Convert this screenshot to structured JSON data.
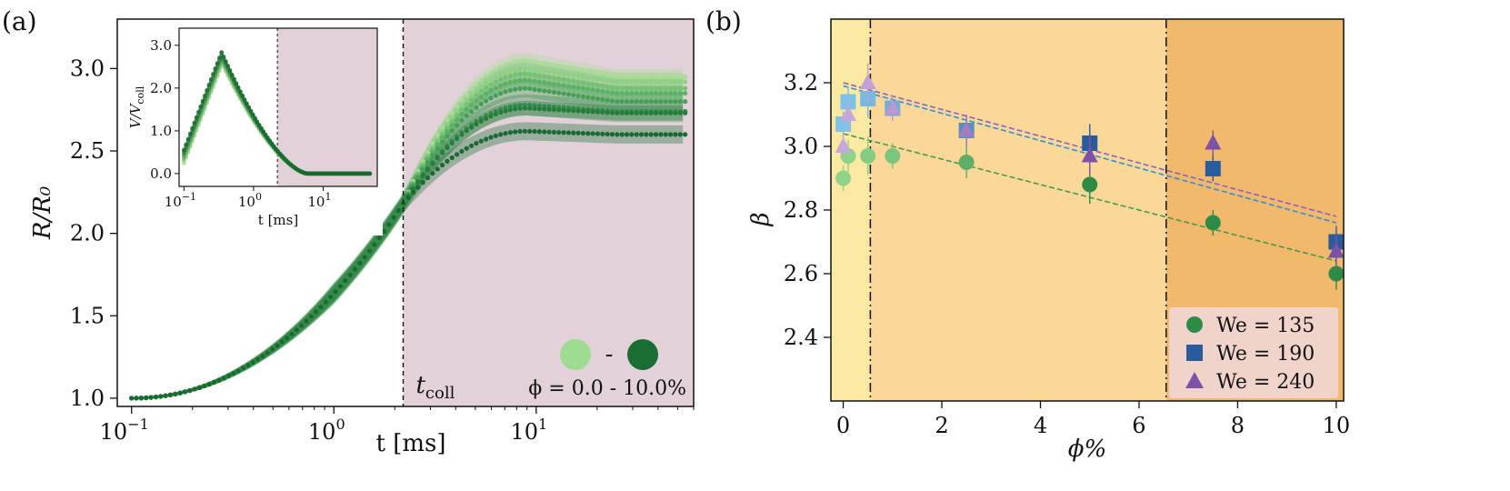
{
  "panel_a": {
    "letter": "(a)",
    "ylabel": "R/R₀",
    "xlabel": "t [ms]",
    "xticks": [
      {
        "v": 0.1,
        "base": "10",
        "exp": "−1"
      },
      {
        "v": 1,
        "base": "10",
        "exp": "0"
      },
      {
        "v": 10,
        "base": "10",
        "exp": "1"
      }
    ],
    "yticks": [
      "1.0",
      "1.5",
      "2.0",
      "2.5",
      "3.0"
    ],
    "tcoll_label": "t",
    "tcoll_sub": "coll",
    "phi_label": "ϕ = 0.0 - 10.0%",
    "dash_label": "-",
    "inset": {
      "ylabel": "V/V",
      "ylabel_sub": "coll",
      "xlabel": "t [ms]",
      "yticks": [
        "0.0",
        "1.0",
        "2.0",
        "3.0"
      ],
      "xticks": [
        {
          "v": 0.1,
          "base": "10",
          "exp": "−1"
        },
        {
          "v": 1,
          "base": "10",
          "exp": "0"
        },
        {
          "v": 10,
          "base": "10",
          "exp": "1"
        }
      ]
    }
  },
  "panel_b": {
    "letter": "(b)",
    "ylabel": "β",
    "xlabel": "ϕ%",
    "xticks": [
      "0",
      "2",
      "4",
      "6",
      "8",
      "10"
    ],
    "yticks": [
      "2.4",
      "2.6",
      "2.8",
      "3.0",
      "3.2"
    ],
    "legend": [
      {
        "label": "We = 135",
        "marker": "circle",
        "color": "#2e8b45"
      },
      {
        "label": "We = 190",
        "marker": "square",
        "color": "#2a5b9c"
      },
      {
        "label": "We = 240",
        "marker": "triangle",
        "color": "#7b52a6"
      }
    ]
  },
  "chart_data": [
    {
      "type": "line",
      "panel": "a",
      "xlabel": "t [ms]",
      "ylabel": "R/R0",
      "xscale": "log",
      "xlim": [
        0.085,
        60
      ],
      "ylim": [
        0.95,
        3.3
      ],
      "t_coll": 2.2,
      "shaded_region": {
        "from": 2.2,
        "to": 60,
        "color": "#e2d1d9"
      },
      "colors": {
        "light": "#9edc8f",
        "dark": "#1a6e33"
      },
      "series_plateaus": [
        {
          "phi_percent": 0.0,
          "plateau": 2.95,
          "peak": 3.05,
          "color": "#a8dd96"
        },
        {
          "phi_percent": 0.1,
          "plateau": 2.92,
          "peak": 3.0,
          "color": "#8fd184"
        },
        {
          "phi_percent": 0.5,
          "plateau": 2.88,
          "peak": 2.97,
          "color": "#74c272"
        },
        {
          "phi_percent": 1.0,
          "plateau": 2.85,
          "peak": 2.93,
          "color": "#5bb263"
        },
        {
          "phi_percent": 2.5,
          "plateau": 2.8,
          "peak": 2.88,
          "color": "#45a055"
        },
        {
          "phi_percent": 5.0,
          "plateau": 2.74,
          "peak": 2.78,
          "color": "#338d48"
        },
        {
          "phi_percent": 7.5,
          "plateau": 2.73,
          "peak": 2.76,
          "color": "#257c3c"
        },
        {
          "phi_percent": 10.0,
          "plateau": 2.6,
          "peak": 2.62,
          "color": "#176a30"
        }
      ],
      "inset": {
        "type": "scatter",
        "xlabel": "t [ms]",
        "ylabel": "V/V_coll",
        "xscale": "log",
        "xlim": [
          0.085,
          60
        ],
        "ylim": [
          -0.3,
          3.4
        ],
        "t_coll": 2.2,
        "points_t": [
          0.1,
          0.2,
          0.3,
          0.4,
          0.5,
          0.6,
          0.7,
          0.8,
          0.9,
          1.0,
          1.2,
          1.5,
          2.0,
          2.5,
          3.0,
          4.0,
          5.0,
          7.0,
          10,
          20,
          30,
          50
        ],
        "points_v": [
          0.4,
          1.1,
          2.5,
          2.6,
          2.35,
          2.1,
          1.9,
          1.7,
          1.5,
          1.4,
          1.15,
          0.9,
          0.65,
          0.45,
          0.3,
          0.15,
          0.06,
          0.02,
          0.0,
          0.0,
          0.0,
          0.0
        ]
      }
    },
    {
      "type": "scatter",
      "panel": "b",
      "xlabel": "ϕ%",
      "ylabel": "β",
      "xlim": [
        -0.25,
        10.15
      ],
      "ylim": [
        2.2,
        3.4
      ],
      "region_boundaries": [
        0.55,
        6.55
      ],
      "region_colors": [
        "#fbe8a1",
        "#fcd898",
        "#f2b86c"
      ],
      "series": [
        {
          "name": "We = 135",
          "marker": "circle",
          "color": "#2e8b45",
          "x": [
            0.0,
            0.1,
            0.5,
            1.0,
            2.5,
            5.0,
            7.5,
            10.0
          ],
          "y": [
            2.9,
            2.97,
            2.97,
            2.97,
            2.95,
            2.88,
            2.76,
            2.6
          ],
          "fit": [
            3.04,
            2.64
          ]
        },
        {
          "name": "We = 190",
          "marker": "square",
          "color": "#2a5b9c",
          "x": [
            0.0,
            0.1,
            0.5,
            1.0,
            2.5,
            5.0,
            7.5,
            10.0
          ],
          "y": [
            3.07,
            3.14,
            3.15,
            3.12,
            3.05,
            3.01,
            2.93,
            2.7
          ],
          "fit": [
            3.19,
            2.76
          ]
        },
        {
          "name": "We = 240",
          "marker": "triangle",
          "color": "#7b52a6",
          "x": [
            0.0,
            0.1,
            0.5,
            1.0,
            2.5,
            5.0,
            7.5,
            10.0
          ],
          "y": [
            3.0,
            3.1,
            3.2,
            3.12,
            3.05,
            2.97,
            3.01,
            2.67
          ],
          "fit": [
            3.2,
            2.78
          ]
        }
      ]
    }
  ]
}
